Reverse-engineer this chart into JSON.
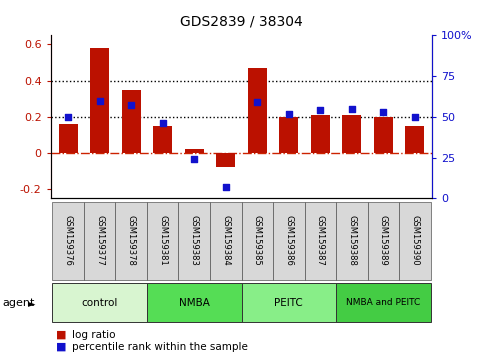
{
  "title": "GDS2839 / 38304",
  "samples": [
    "GSM159376",
    "GSM159377",
    "GSM159378",
    "GSM159381",
    "GSM159383",
    "GSM159384",
    "GSM159385",
    "GSM159386",
    "GSM159387",
    "GSM159388",
    "GSM159389",
    "GSM159390"
  ],
  "log_ratio": [
    0.16,
    0.58,
    0.35,
    0.15,
    0.02,
    -0.08,
    0.47,
    0.2,
    0.21,
    0.21,
    0.2,
    0.15
  ],
  "percentile": [
    50,
    60,
    57,
    46,
    24,
    7,
    59,
    52,
    54,
    55,
    53,
    50
  ],
  "bar_color": "#BB1100",
  "dot_color": "#1111CC",
  "ylim_left": [
    -0.25,
    0.65
  ],
  "ylim_right": [
    0,
    100
  ],
  "yticks_left": [
    -0.2,
    0.0,
    0.2,
    0.4,
    0.6
  ],
  "yticks_right": [
    0,
    25,
    50,
    75,
    100
  ],
  "hlines": [
    0.2,
    0.4
  ],
  "zero_line_color": "#CC2200",
  "hline_color": "#000000",
  "groups": [
    {
      "label": "control",
      "start": 0,
      "end": 3,
      "color": "#d8f5d0"
    },
    {
      "label": "NMBA",
      "start": 3,
      "end": 6,
      "color": "#55dd55"
    },
    {
      "label": "PEITC",
      "start": 6,
      "end": 9,
      "color": "#88ee88"
    },
    {
      "label": "NMBA and PEITC",
      "start": 9,
      "end": 12,
      "color": "#44cc44"
    }
  ],
  "legend_bar_label": "log ratio",
  "legend_dot_label": "percentile rank within the sample",
  "agent_label": "agent",
  "bar_width": 0.6
}
